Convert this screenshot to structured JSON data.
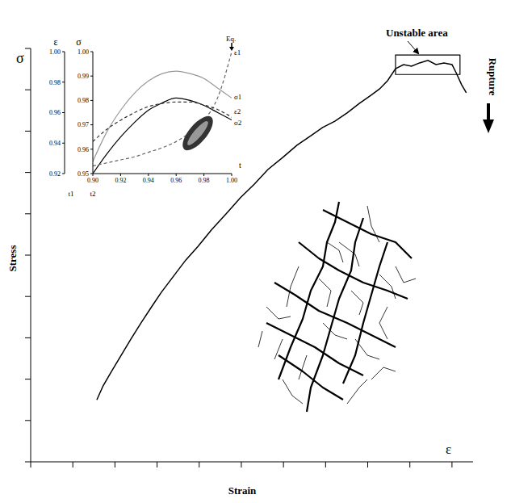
{
  "chart_data": [
    {
      "type": "line",
      "x_label": "Strain",
      "y_label": "Stress",
      "x_symbol": "ε",
      "y_symbol": "σ",
      "x": [
        1.57,
        1.72,
        1.92,
        2.15,
        2.38,
        2.62,
        2.87,
        3.1,
        3.39,
        3.68,
        3.97,
        4.29,
        4.64,
        4.98,
        5.31,
        5.63,
        5.98,
        6.32,
        6.65,
        6.93,
        7.22,
        7.51,
        7.8,
        8.08,
        8.28,
        8.47,
        8.66,
        8.85,
        9.04,
        9.23,
        9.43,
        9.62,
        9.81,
        10.0,
        10.1,
        10.23,
        10.34
      ],
      "values": [
        1.5,
        1.84,
        2.19,
        2.58,
        2.97,
        3.36,
        3.75,
        4.1,
        4.49,
        4.88,
        5.21,
        5.61,
        6.0,
        6.39,
        6.72,
        7.07,
        7.36,
        7.66,
        7.89,
        8.09,
        8.24,
        8.44,
        8.67,
        8.87,
        9.02,
        9.22,
        9.51,
        9.61,
        9.57,
        9.65,
        9.71,
        9.61,
        9.65,
        9.61,
        9.41,
        9.12,
        8.93
      ],
      "color": "#000000",
      "xlim": [
        0,
        10.5
      ],
      "ylim": [
        0,
        10
      ],
      "xticks": [
        0,
        1,
        2,
        3,
        4,
        5,
        6,
        7,
        8,
        9,
        10
      ],
      "yticks": [
        0,
        1,
        2,
        3,
        4,
        5,
        6,
        7,
        8,
        9,
        10
      ],
      "tick_labels": false,
      "unstable_area": {
        "label": "Unstable area",
        "x": [
          8.66,
          10.19
        ],
        "y": [
          9.37,
          9.84
        ]
      },
      "annotations": [
        "Rupture"
      ]
    },
    {
      "type": "line",
      "x_label": "t",
      "y_label": "σ",
      "y2_label": "ε",
      "annotations": [
        "t1",
        "t2",
        "Eq."
      ],
      "x": [
        0.9,
        0.91,
        0.92,
        0.93,
        0.94,
        0.95,
        0.96,
        0.97,
        0.98,
        0.99,
        1.0
      ],
      "series": [
        {
          "name": "σ1",
          "color": "#999999",
          "line_style": "solid",
          "values": [
            0.955,
            0.967,
            0.976,
            0.983,
            0.988,
            0.991,
            0.992,
            0.991,
            0.989,
            0.985,
            0.981
          ]
        },
        {
          "name": "σ2",
          "color": "#000000",
          "line_style": "solid",
          "values": [
            0.95,
            0.958,
            0.965,
            0.971,
            0.976,
            0.979,
            0.981,
            0.98,
            0.978,
            0.975,
            0.972
          ]
        },
        {
          "name": "ε1",
          "color": "#666666",
          "line_style": "dashed",
          "axis": "y2",
          "values": [
            0.925,
            0.927,
            0.929,
            0.931,
            0.934,
            0.937,
            0.941,
            0.947,
            0.955,
            0.97,
            1.0
          ]
        },
        {
          "name": "ε2",
          "color": "#333333",
          "line_style": "dashed",
          "axis": "y2",
          "values": [
            0.941,
            0.949,
            0.955,
            0.96,
            0.964,
            0.966,
            0.967,
            0.967,
            0.965,
            0.962,
            0.957
          ]
        }
      ],
      "xlim": [
        0.9,
        1.0
      ],
      "xticks": [
        {
          "value": 0.9,
          "label": "0.90"
        },
        0.92,
        0.94,
        0.96,
        0.98,
        {
          "value": 1,
          "label": "1.00"
        }
      ],
      "ylim": [
        0.95,
        1.0
      ],
      "yticks": [
        0.95,
        0.96,
        0.97,
        0.98,
        0.99,
        {
          "value": 1,
          "label": "1.00"
        }
      ],
      "y2lim": [
        0.92,
        1.0
      ],
      "y2ticks": [
        0.92,
        0.94,
        0.96,
        0.98,
        {
          "value": 1,
          "label": "1.00"
        }
      ]
    }
  ]
}
